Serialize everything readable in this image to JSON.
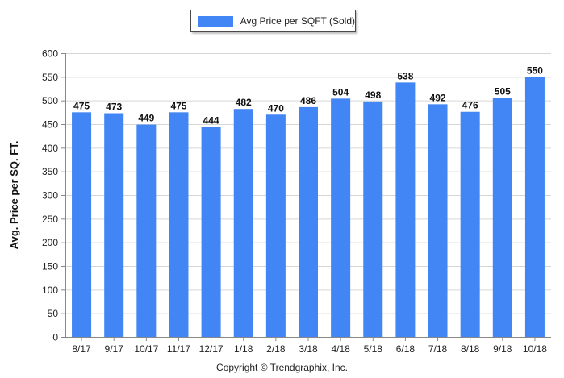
{
  "chart_data": {
    "type": "bar",
    "categories": [
      "8/17",
      "9/17",
      "10/17",
      "11/17",
      "12/17",
      "1/18",
      "2/18",
      "3/18",
      "4/18",
      "5/18",
      "6/18",
      "7/18",
      "8/18",
      "9/18",
      "10/18"
    ],
    "series": [
      {
        "name": "Avg Price per SQFT (Sold)",
        "values": [
          475,
          473,
          449,
          475,
          444,
          482,
          470,
          486,
          504,
          498,
          538,
          492,
          476,
          505,
          550
        ],
        "color": "#4285f4"
      }
    ],
    "ylabel": "Avg. Price per SQ. FT.",
    "xlabel": "",
    "ylim": [
      0,
      600
    ],
    "yticks": [
      0,
      50,
      100,
      150,
      200,
      250,
      300,
      350,
      400,
      450,
      500,
      550,
      600
    ],
    "grid": true,
    "legend_position": "top-center",
    "data_labels": true
  },
  "footer": {
    "copyright": "Copyright © Trendgraphix, Inc."
  }
}
